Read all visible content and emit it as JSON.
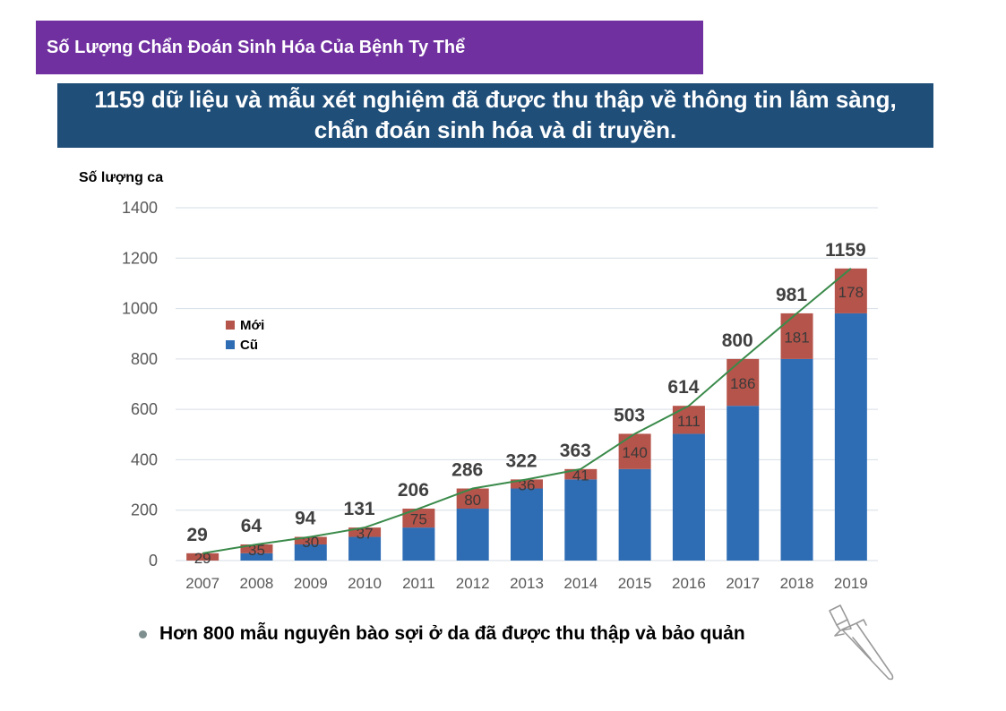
{
  "header": {
    "title": "Số Lượng Chẩn Đoán Sinh Hóa Của Bệnh Ty Thể"
  },
  "headline": {
    "text": "1159 dữ liệu và mẫu xét nghiệm đã được thu thập về thông tin lâm sàng, chẩn đoán sinh hóa và di truyền."
  },
  "chart_data": {
    "type": "bar",
    "stacked": true,
    "categories": [
      "2007",
      "2008",
      "2009",
      "2010",
      "2011",
      "2012",
      "2013",
      "2014",
      "2015",
      "2016",
      "2017",
      "2018",
      "2019"
    ],
    "series": [
      {
        "name": "Cũ",
        "color": "#2e6db4",
        "values": [
          0,
          29,
          64,
          94,
          131,
          206,
          286,
          322,
          363,
          503,
          614,
          800,
          981
        ]
      },
      {
        "name": "Mới",
        "color": "#b5544a",
        "values": [
          29,
          35,
          30,
          37,
          75,
          80,
          36,
          41,
          140,
          111,
          186,
          181,
          178
        ]
      }
    ],
    "totals": [
      29,
      64,
      94,
      131,
      206,
      286,
      322,
      363,
      503,
      614,
      800,
      981,
      1159
    ],
    "line": {
      "color": "#3a8a4a",
      "values": [
        29,
        64,
        94,
        131,
        206,
        286,
        322,
        363,
        503,
        614,
        800,
        981,
        1159
      ]
    },
    "ylabel": "Số lượng ca",
    "ylim": [
      0,
      1400
    ],
    "yticks": [
      0,
      200,
      400,
      600,
      800,
      1000,
      1200,
      1400
    ],
    "grid": true,
    "legend_position": "left"
  },
  "footer": {
    "bullet_text": "Hơn 800 mẫu nguyên bào sợi ở da đã được thu thập và bảo quản"
  },
  "icons": {
    "tube": "test-tube-icon"
  }
}
